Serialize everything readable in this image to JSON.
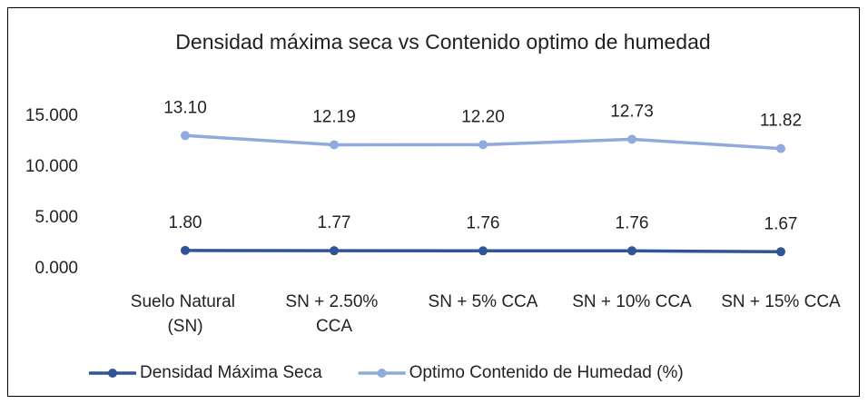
{
  "chart_data": {
    "type": "line",
    "title": "Densidad máxima seca vs Contenido optimo de humedad",
    "categories": [
      "Suelo Natural (SN)",
      "SN + 2.50% CCA",
      "SN + 5% CCA",
      "SN + 10% CCA",
      "SN + 15% CCA"
    ],
    "series": [
      {
        "name": "Densidad Máxima Seca",
        "color": "#2f5597",
        "values": [
          1.8,
          1.77,
          1.76,
          1.76,
          1.67
        ],
        "value_labels": [
          "1.80",
          "1.77",
          "1.76",
          "1.76",
          "1.67"
        ]
      },
      {
        "name": "Optimo Contenido de Humedad (%)",
        "color": "#8faadc",
        "values": [
          13.1,
          12.19,
          12.2,
          12.73,
          11.82
        ],
        "value_labels": [
          "13.10",
          "12.19",
          "12.20",
          "12.73",
          "11.82"
        ]
      }
    ],
    "ylim": [
      0,
      15
    ],
    "yticks": [
      {
        "value": 0,
        "label": "0.000"
      },
      {
        "value": 5,
        "label": "5.000"
      },
      {
        "value": 10,
        "label": "10.000"
      },
      {
        "value": 15,
        "label": "15.000"
      }
    ],
    "grid": false,
    "legend": "bottom"
  }
}
